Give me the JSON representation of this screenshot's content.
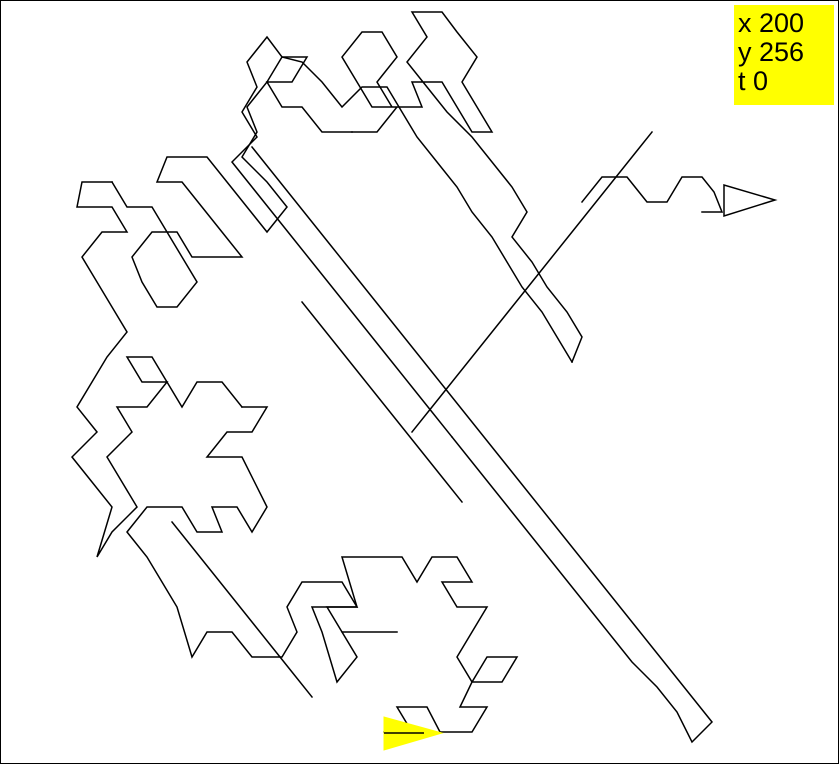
{
  "colors": {
    "canvas_background": "#ffffff",
    "frame": "#000000",
    "path_stroke": "#000000",
    "status_background": "#ffff00",
    "start_turtle_fill": "#ffff00",
    "end_turtle_fill": "#ffffff"
  },
  "status": {
    "x_text": "x 200",
    "y_text": "y 256",
    "t_text": "t 0"
  },
  "turtles": {
    "start": {
      "icon": "triangle-turtle-icon",
      "heading_degrees": 0
    },
    "end": {
      "icon": "triangle-turtle-icon",
      "heading_degrees": 0
    }
  },
  "drawing": {
    "type": "Gosper-like turtle trail",
    "segment_units": 30
  }
}
